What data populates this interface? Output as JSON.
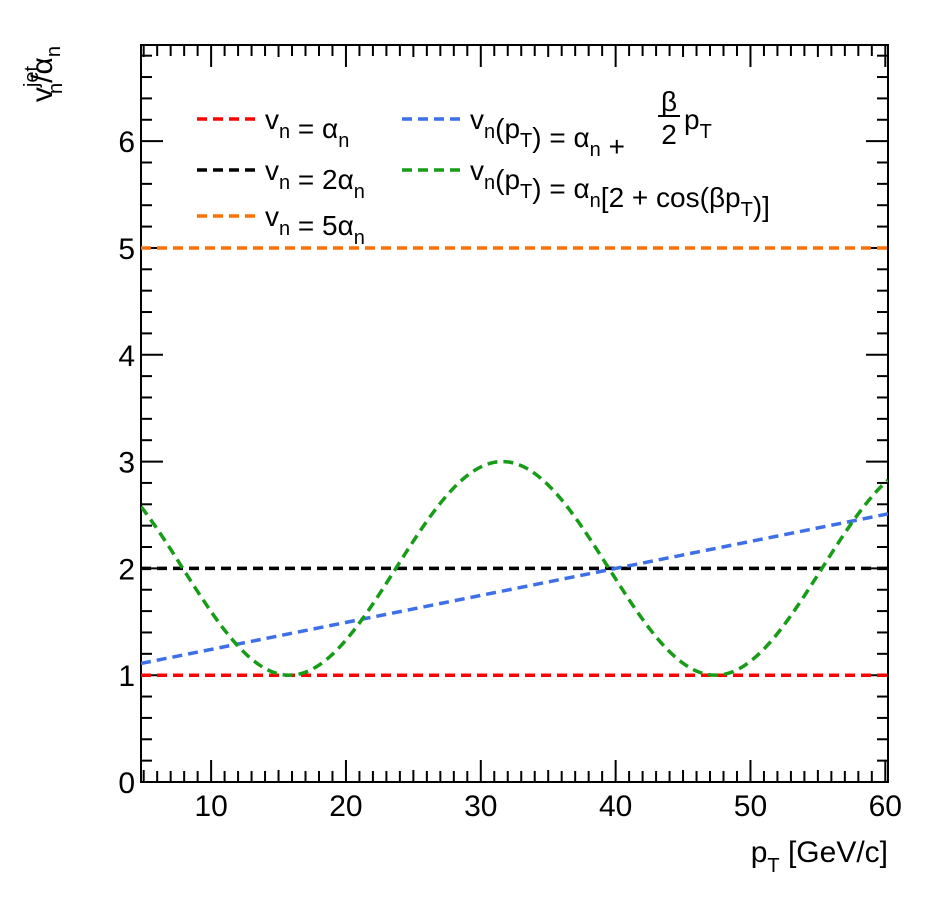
{
  "chart_data": {
    "type": "line",
    "title": "",
    "xlabel": "p_T [GeV/c]",
    "xlabel_parts": {
      "base": "p",
      "sub": "T",
      "rest": " [GeV/c]"
    },
    "ylabel": "v_n^jet/α_n",
    "ylabel_parts": {
      "base": "v",
      "sup": "jet",
      "sub": "n",
      "slash": "/α",
      "sub2": "n"
    },
    "xlim": [
      4.8,
      60.2
    ],
    "ylim": [
      0,
      6.9
    ],
    "x_ticks": [
      10,
      20,
      30,
      40,
      50,
      60
    ],
    "y_ticks": [
      0,
      1,
      2,
      3,
      4,
      5,
      6
    ],
    "grid": false,
    "legend_position": "top",
    "series": [
      {
        "key": "const1",
        "name": "v_n = α_n",
        "color": "#ff0000",
        "kind": "constant",
        "y": 1,
        "label": {
          "a": "v",
          "a_sub": "n",
          "b": " = α",
          "b_sub": "n"
        }
      },
      {
        "key": "const2",
        "name": "v_n = 2α_n",
        "color": "#000000",
        "kind": "constant",
        "y": 2,
        "label": {
          "a": "v",
          "a_sub": "n",
          "b": " = 2α",
          "b_sub": "n"
        }
      },
      {
        "key": "const5",
        "name": "v_n = 5α_n",
        "color": "#ff7000",
        "kind": "constant",
        "y": 5,
        "label": {
          "a": "v",
          "a_sub": "n",
          "b": " = 5α",
          "b_sub": "n"
        }
      },
      {
        "key": "linear",
        "name": "v_n(p_T) = α_n + (β/2)p_T",
        "color": "#3d6fe8",
        "kind": "linear",
        "x": [
          4.8,
          60.2
        ],
        "y": [
          1.11,
          2.51
        ],
        "label": {
          "a": "v",
          "a_sub": "n",
          "b": "(p",
          "b_sub": "T",
          "c": ") = α",
          "c_sub": "n",
          "d": " + ",
          "frac_num": "β",
          "frac_den": "2",
          "e": "p",
          "e_sub": "T"
        }
      },
      {
        "key": "cosine",
        "name": "v_n(p_T) = α_n[2 + cos(βp_T)]",
        "color": "#169c16",
        "kind": "cosine",
        "x_range": [
          4.8,
          60.2
        ],
        "amplitude": 1,
        "offset": 2,
        "period": 31.6,
        "peak_x": 31.6,
        "label": {
          "a": "v",
          "a_sub": "n",
          "b": "(p",
          "b_sub": "T",
          "c": ") = α",
          "c_sub": "n",
          "d": "[2 + cos(βp",
          "d_sub": "T",
          "e": ")]"
        }
      }
    ]
  }
}
